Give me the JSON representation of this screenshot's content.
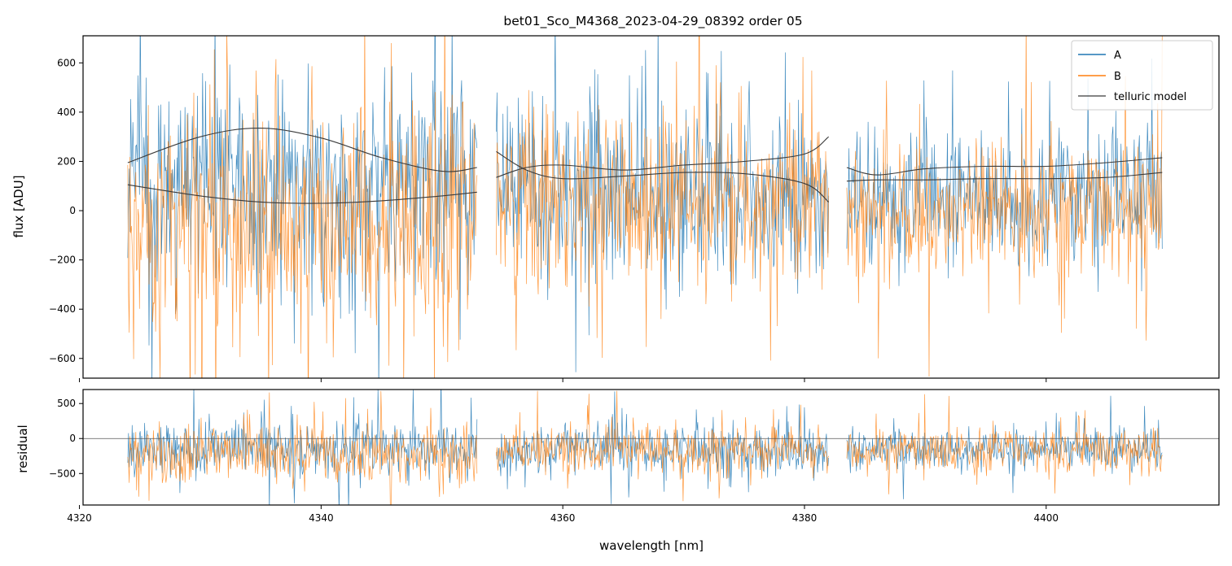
{
  "chart_data": [
    {
      "type": "line",
      "panel": "flux",
      "title": "bet01_Sco_M4368_2023-04-29_08392  order 05",
      "xlabel": "",
      "ylabel": "flux [ADU]",
      "xlim": [
        4320.3,
        4414.3
      ],
      "ylim": [
        -680,
        710
      ],
      "yticks": [
        -600,
        -400,
        -200,
        0,
        200,
        400,
        600
      ],
      "xticks": [
        4320,
        4340,
        4360,
        4380,
        4400
      ],
      "xtick_labels_shown": false,
      "grid": false,
      "legend": {
        "placement": "top-right",
        "entries": [
          "A",
          "B",
          "telluric model"
        ]
      },
      "colors": {
        "A": "#1f77b4",
        "B": "#ff7f0e",
        "telluric model": "#3a3a3a"
      },
      "segments": [
        {
          "x_range": [
            4324.0,
            4352.9
          ]
        },
        {
          "x_range": [
            4354.5,
            4382.0
          ]
        },
        {
          "x_range": [
            4383.5,
            4409.6
          ]
        }
      ],
      "series": [
        {
          "name": "A",
          "noise_band": [
            {
              "x_range": [
                4324.0,
                4352.9
              ],
              "center": 120,
              "spread": 380
            },
            {
              "x_range": [
                4354.5,
                4382.0
              ],
              "center": 60,
              "spread": 300
            },
            {
              "x_range": [
                4383.5,
                4409.6
              ],
              "center": 60,
              "spread": 250
            }
          ]
        },
        {
          "name": "B",
          "noise_band": [
            {
              "x_range": [
                4324.0,
                4352.9
              ],
              "center": -60,
              "spread": 420
            },
            {
              "x_range": [
                4354.5,
                4382.0
              ],
              "center": 40,
              "spread": 320
            },
            {
              "x_range": [
                4383.5,
                4409.6
              ],
              "center": 0,
              "spread": 260
            }
          ]
        },
        {
          "name": "telluric model",
          "curves": [
            {
              "x": [
                4324.0,
                4330.0,
                4335.0,
                4340.0,
                4345.0,
                4350.0,
                4352.9
              ],
              "y": [
                195,
                300,
                335,
                295,
                215,
                160,
                175
              ]
            },
            {
              "x": [
                4324.0,
                4330.0,
                4335.0,
                4340.0,
                4345.0,
                4350.0,
                4352.9
              ],
              "y": [
                105,
                60,
                35,
                30,
                40,
                60,
                75
              ]
            },
            {
              "x": [
                4354.5,
                4357.0,
                4360.0,
                4365.0,
                4370.0,
                4375.0,
                4380.0,
                4382.0
              ],
              "y": [
                240,
                165,
                130,
                140,
                155,
                150,
                110,
                35
              ]
            },
            {
              "x": [
                4354.5,
                4357.0,
                4360.0,
                4365.0,
                4370.0,
                4375.0,
                4380.0,
                4382.0
              ],
              "y": [
                135,
                175,
                185,
                165,
                185,
                200,
                230,
                300
              ]
            },
            {
              "x": [
                4383.5,
                4386.0,
                4390.0,
                4395.0,
                4400.0,
                4405.0,
                4409.6
              ],
              "y": [
                175,
                145,
                170,
                180,
                180,
                195,
                215
              ]
            },
            {
              "x": [
                4383.5,
                4386.0,
                4390.0,
                4395.0,
                4400.0,
                4405.0,
                4409.6
              ],
              "y": [
                120,
                125,
                125,
                130,
                130,
                135,
                155
              ]
            }
          ]
        }
      ]
    },
    {
      "type": "line",
      "panel": "residual",
      "title": "",
      "xlabel": "wavelength [nm]",
      "ylabel": "residual",
      "xlim": [
        4320.3,
        4414.3
      ],
      "ylim": [
        -950,
        700
      ],
      "yticks": [
        -500,
        0,
        500
      ],
      "xticks": [
        4320,
        4340,
        4360,
        4380,
        4400
      ],
      "xtick_labels_shown": true,
      "grid": false,
      "reference_line": {
        "y": 0,
        "color": "#555555"
      },
      "series": [
        {
          "name": "A",
          "noise_band": [
            {
              "x_range": [
                4324.0,
                4352.9
              ],
              "center": -150,
              "spread": 360
            },
            {
              "x_range": [
                4354.5,
                4382.0
              ],
              "center": -170,
              "spread": 300
            },
            {
              "x_range": [
                4383.5,
                4409.6
              ],
              "center": -150,
              "spread": 280
            }
          ]
        },
        {
          "name": "B",
          "noise_band": [
            {
              "x_range": [
                4324.0,
                4352.9
              ],
              "center": -230,
              "spread": 380
            },
            {
              "x_range": [
                4354.5,
                4382.0
              ],
              "center": -160,
              "spread": 300
            },
            {
              "x_range": [
                4383.5,
                4409.6
              ],
              "center": -170,
              "spread": 290
            }
          ]
        }
      ]
    }
  ]
}
